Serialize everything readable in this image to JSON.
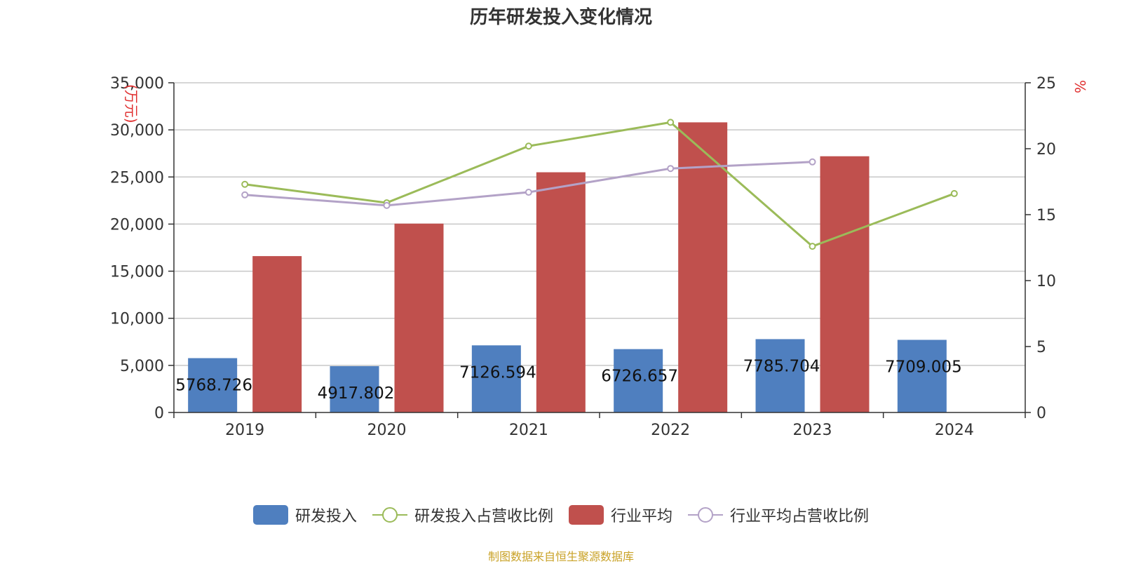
{
  "title": "历年研发投入变化情况",
  "source": "制图数据来自恒生聚源数据库",
  "chart_data": {
    "type": "bar",
    "title": "历年研发投入变化情况",
    "categories": [
      "2019",
      "2020",
      "2021",
      "2022",
      "2023",
      "2024"
    ],
    "y_left": {
      "label": "(万元)",
      "min": 0,
      "max": 35000,
      "ticks": [
        "0",
        "5,000",
        "10,000",
        "15,000",
        "20,000",
        "25,000",
        "30,000",
        "35,000"
      ]
    },
    "y_right": {
      "label": "%",
      "min": 0,
      "max": 25,
      "ticks": [
        "0",
        "5",
        "10",
        "15",
        "20",
        "25"
      ]
    },
    "series": [
      {
        "name": "研发投入",
        "type": "bar",
        "axis": "left",
        "color": "#4f7fbf",
        "values": [
          5768.726,
          4917.802,
          7126.594,
          6726.657,
          7785.704,
          7709.005
        ],
        "labels": [
          "5768.726",
          "4917.802",
          "7126.594",
          "6726.657",
          "7785.704",
          "7709.005"
        ]
      },
      {
        "name": "研发投入占营收比例",
        "type": "line",
        "axis": "right",
        "color": "#9bbb59",
        "values": [
          17.3,
          15.9,
          20.2,
          22.0,
          12.6,
          16.6
        ]
      },
      {
        "name": "行业平均",
        "type": "bar",
        "axis": "left",
        "color": "#c0504d",
        "values": [
          16600,
          20050,
          25500,
          30800,
          27200,
          null
        ]
      },
      {
        "name": "行业平均占营收比例",
        "type": "line",
        "axis": "right",
        "color": "#b3a2c7",
        "values": [
          16.5,
          15.7,
          16.7,
          18.5,
          19.0,
          null
        ]
      }
    ],
    "grid": true,
    "legend_position": "bottom"
  }
}
